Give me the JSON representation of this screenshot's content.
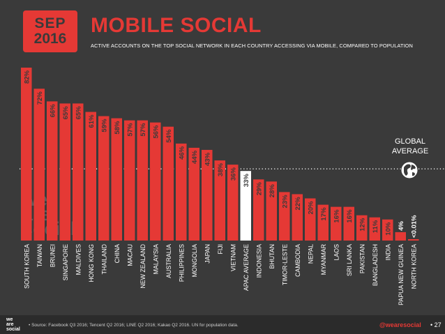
{
  "header": {
    "date_month": "SEP",
    "date_year": "2016",
    "title": "MOBILE SOCIAL",
    "subtitle": "ACTIVE ACCOUNTS ON THE TOP SOCIAL NETWORK IN EACH COUNTRY ACCESSING VIA MOBILE, COMPARED TO POPULATION"
  },
  "watermark": {
    "line1": "we",
    "line2": "are",
    "line3": "social"
  },
  "global": {
    "line1": "GLOBAL",
    "line2": "AVERAGE",
    "icon": "globe-icon"
  },
  "footer": {
    "logo_line1": "we",
    "logo_line2": "are",
    "logo_line3": "social",
    "source": "• Source: Facebook Q3 2016; Tencent Q2 2016; LINE Q2 2016; Kakao Q2 2016. UN for population data.",
    "handle": "@wearesocial",
    "page": "• 27"
  },
  "colors": {
    "bar": "#e53935",
    "highlight_bar": "#ffffff",
    "background": "#3a3a3a",
    "text": "#ffffff",
    "bar_label": "#3a3a3a"
  },
  "chart_data": {
    "type": "bar",
    "title": "MOBILE SOCIAL",
    "ylim": [
      0,
      82
    ],
    "global_average_percent": 34,
    "categories": [
      "SOUTH KOREA",
      "TAIWAN",
      "BRUNEI",
      "SINGAPORE",
      "MALDIVES",
      "HONG KONG",
      "THAILAND",
      "CHINA",
      "MACAU",
      "NEW ZEALAND",
      "MALAYSIA",
      "AUSTRALIA",
      "PHILIPPINES",
      "MONGOLIA",
      "JAPAN",
      "FIJI",
      "VIETNAM",
      "APAC AVERAGE",
      "INDONESIA",
      "BHUTAN",
      "TIMOR-LESTE",
      "CAMBODIA",
      "NEPAL",
      "MYANMAR",
      "LAOS",
      "SRI LANKA",
      "PAKISTAN",
      "BANGLADESH",
      "INDIA",
      "PAPUA NEW GUINEA",
      "NORTH KOREA"
    ],
    "values": [
      82,
      72,
      66,
      65,
      65,
      61,
      59,
      58,
      57,
      57,
      56,
      54,
      46,
      44,
      43,
      38,
      36,
      33,
      29,
      28,
      23,
      22,
      20,
      17,
      16,
      16,
      12,
      11,
      10,
      4,
      0.01
    ],
    "labels": [
      "82%",
      "72%",
      "66%",
      "65%",
      "65%",
      "61%",
      "59%",
      "58%",
      "57%",
      "57%",
      "56%",
      "54%",
      "46%",
      "44%",
      "43%",
      "38%",
      "36%",
      "33%",
      "29%",
      "28%",
      "23%",
      "22%",
      "20%",
      "17%",
      "16%",
      "16%",
      "12%",
      "11%",
      "10%",
      "4%",
      "<0.01%"
    ],
    "highlight_index": 17
  }
}
